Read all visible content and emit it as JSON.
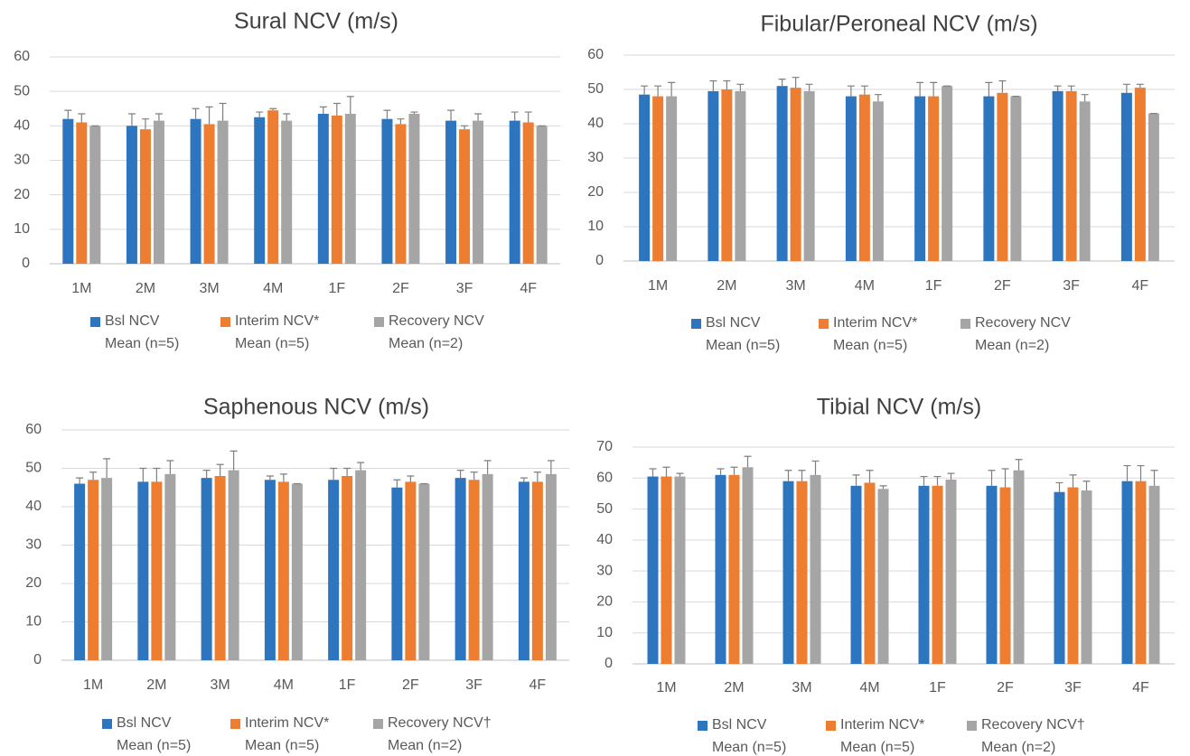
{
  "chart_data": [
    {
      "type": "bar",
      "title": "Sural NCV (m/s)",
      "categories": [
        "1M",
        "2M",
        "3M",
        "4M",
        "1F",
        "2F",
        "3F",
        "4F"
      ],
      "ylim": [
        0,
        60
      ],
      "yticks": [
        0,
        10,
        20,
        30,
        40,
        50,
        60
      ],
      "grid": true,
      "series": [
        {
          "name": "Bsl NCV\nMean (n=5)",
          "color": "#2e75c0",
          "values": [
            42,
            40,
            42,
            42.5,
            43.5,
            42,
            41.5,
            41.5
          ],
          "errors": [
            2.5,
            3.5,
            3,
            1.5,
            2,
            2.5,
            3,
            2.5
          ]
        },
        {
          "name": "Interim NCV*\nMean (n=5)",
          "color": "#ed7d31",
          "values": [
            41,
            39,
            40.5,
            44.5,
            43,
            40.5,
            39,
            41
          ],
          "errors": [
            2.5,
            3,
            5,
            0.5,
            3.5,
            1.5,
            1,
            3
          ]
        },
        {
          "name": "Recovery NCV\nMean (n=2)",
          "color": "#a5a5a5",
          "values": [
            40,
            41.5,
            41.5,
            41.5,
            43.5,
            43.5,
            41.5,
            40
          ],
          "errors": [
            0,
            2,
            5,
            2,
            5,
            0.5,
            2,
            0
          ]
        }
      ]
    },
    {
      "type": "bar",
      "title": "Fibular/Peroneal NCV (m/s)",
      "categories": [
        "1M",
        "2M",
        "3M",
        "4M",
        "1F",
        "2F",
        "3F",
        "4F"
      ],
      "ylim": [
        0,
        60
      ],
      "yticks": [
        0,
        10,
        20,
        30,
        40,
        50,
        60
      ],
      "grid": true,
      "series": [
        {
          "name": "Bsl NCV\nMean (n=5)",
          "color": "#2e75c0",
          "values": [
            48.5,
            49.5,
            51,
            48,
            48,
            48,
            49.5,
            49
          ],
          "errors": [
            2.5,
            3,
            2,
            3,
            4,
            4,
            1.5,
            2.5
          ]
        },
        {
          "name": "Interim NCV*\nMean (n=5)",
          "color": "#ed7d31",
          "values": [
            48,
            50,
            50.5,
            48.5,
            48,
            49,
            49.5,
            50.5
          ],
          "errors": [
            3,
            2.5,
            3,
            2.5,
            4,
            3.5,
            1.5,
            1
          ]
        },
        {
          "name": "Recovery NCV\nMean (n=2)",
          "color": "#a5a5a5",
          "values": [
            48,
            49.5,
            49.5,
            46.5,
            51,
            48,
            46.5,
            43
          ],
          "errors": [
            4,
            2,
            2,
            2,
            0,
            0,
            2,
            0
          ]
        }
      ]
    },
    {
      "type": "bar",
      "title": "Saphenous NCV (m/s)",
      "categories": [
        "1M",
        "2M",
        "3M",
        "4M",
        "1F",
        "2F",
        "3F",
        "4F"
      ],
      "ylim": [
        0,
        60
      ],
      "yticks": [
        0,
        10,
        20,
        30,
        40,
        50,
        60
      ],
      "grid": true,
      "series": [
        {
          "name": "Bsl NCV\nMean (n=5)",
          "color": "#2e75c0",
          "values": [
            46,
            46.5,
            47.5,
            47,
            47,
            45,
            47.5,
            46.5
          ],
          "errors": [
            1.5,
            3.5,
            2,
            1,
            3,
            2,
            2,
            1
          ]
        },
        {
          "name": "Interim NCV*\nMean (n=5)",
          "color": "#ed7d31",
          "values": [
            47,
            46.5,
            48,
            46.5,
            48,
            46.5,
            47,
            46.5
          ],
          "errors": [
            2,
            3.5,
            3,
            2,
            2,
            1.5,
            2,
            2.5
          ]
        },
        {
          "name": "Recovery NCV†\nMean (n=2)",
          "color": "#a5a5a5",
          "values": [
            47.5,
            48.5,
            49.5,
            46,
            49.5,
            46,
            48.5,
            48.5
          ],
          "errors": [
            5,
            3.5,
            5,
            0,
            2,
            0,
            3.5,
            3.5
          ]
        }
      ]
    },
    {
      "type": "bar",
      "title": "Tibial NCV (m/s)",
      "categories": [
        "1M",
        "2M",
        "3M",
        "4M",
        "1F",
        "2F",
        "3F",
        "4F"
      ],
      "ylim": [
        0,
        70
      ],
      "yticks": [
        0,
        10,
        20,
        30,
        40,
        50,
        60,
        70
      ],
      "grid": true,
      "series": [
        {
          "name": "Bsl NCV\nMean (n=5)",
          "color": "#2e75c0",
          "values": [
            60.5,
            61,
            59,
            57.5,
            57.5,
            57.5,
            55.5,
            59
          ],
          "errors": [
            2.5,
            2,
            3.5,
            3.5,
            3,
            5,
            3,
            5
          ]
        },
        {
          "name": "Interim NCV*\nMean (n=5)",
          "color": "#ed7d31",
          "values": [
            60.5,
            61,
            59,
            58.5,
            57.5,
            57,
            57,
            59
          ],
          "errors": [
            3,
            2.5,
            3.5,
            4,
            3,
            6,
            4,
            5
          ]
        },
        {
          "name": "Recovery NCV†\nMean (n=2)",
          "color": "#a5a5a5",
          "values": [
            60.5,
            63.5,
            61,
            56.5,
            59.5,
            62.5,
            56,
            57.5
          ],
          "errors": [
            1,
            3.5,
            4.5,
            1,
            2,
            3.5,
            3,
            5
          ]
        }
      ]
    }
  ]
}
